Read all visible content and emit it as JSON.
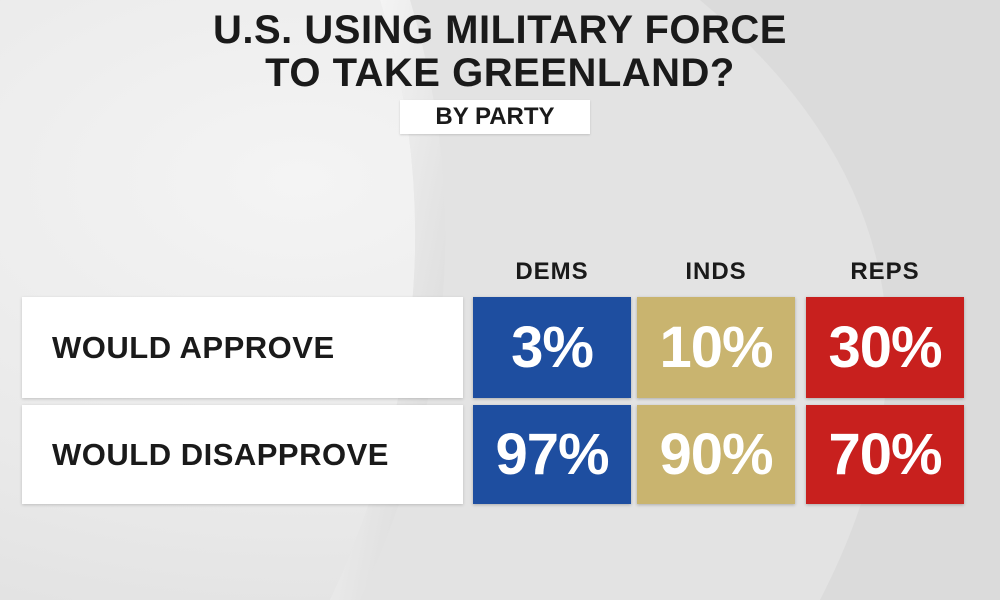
{
  "title": {
    "line1": "U.S. USING MILITARY FORCE",
    "line2": "TO TAKE GREENLAND?"
  },
  "subtitle": "BY PARTY",
  "colors": {
    "dems": "#1e4ea0",
    "inds": "#c9b46f",
    "reps": "#c8201e"
  },
  "chart_data": {
    "type": "table",
    "title": "U.S. USING MILITARY FORCE TO TAKE GREENLAND?",
    "subtitle": "BY PARTY",
    "columns": [
      "DEMS",
      "INDS",
      "REPS"
    ],
    "rows": [
      {
        "label": "WOULD APPROVE",
        "values": [
          "3%",
          "10%",
          "30%"
        ]
      },
      {
        "label": "WOULD DISAPPROVE",
        "values": [
          "97%",
          "90%",
          "70%"
        ]
      }
    ]
  }
}
